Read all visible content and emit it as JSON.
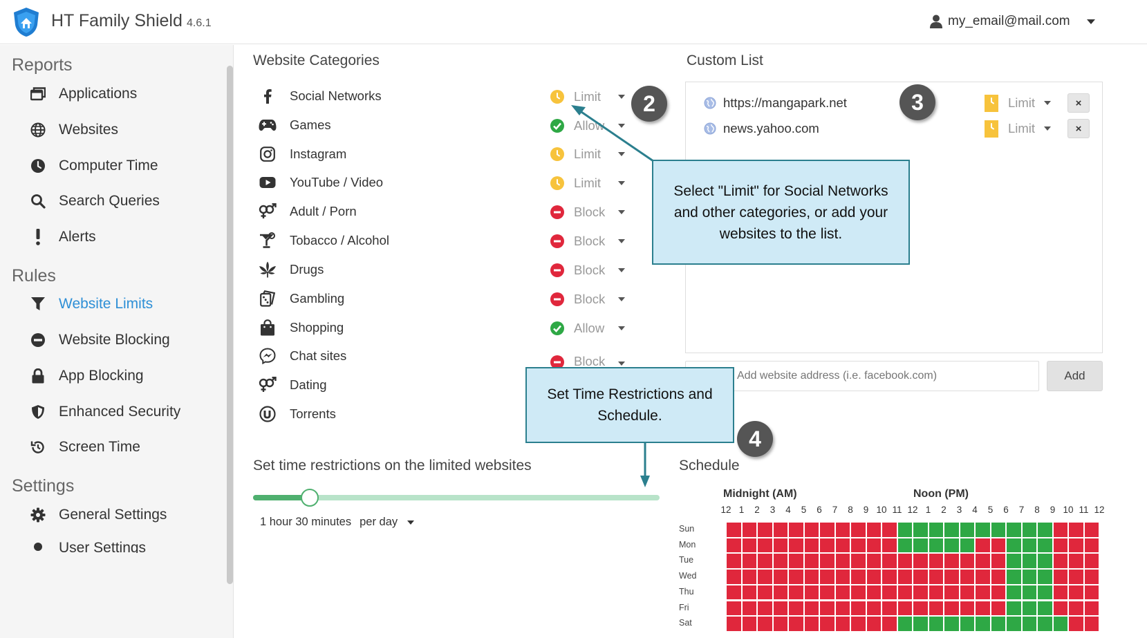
{
  "header": {
    "app_title": "HT Family Shield",
    "version": "4.6.1",
    "user_email": "my_email@mail.com"
  },
  "sidebar": {
    "reports_title": "Reports",
    "reports_items": [
      {
        "label": "Applications",
        "icon": "window-icon"
      },
      {
        "label": "Websites",
        "icon": "globe-icon"
      },
      {
        "label": "Computer Time",
        "icon": "clock-icon"
      },
      {
        "label": "Search Queries",
        "icon": "search-icon"
      },
      {
        "label": "Alerts",
        "icon": "exclamation-icon"
      }
    ],
    "rules_title": "Rules",
    "rules_items": [
      {
        "label": "Website Limits",
        "icon": "filter-icon",
        "active": true
      },
      {
        "label": "Website Blocking",
        "icon": "minus-circle-icon"
      },
      {
        "label": "App Blocking",
        "icon": "lock-icon"
      },
      {
        "label": "Enhanced Security",
        "icon": "shield-icon"
      },
      {
        "label": "Screen Time",
        "icon": "history-icon"
      }
    ],
    "settings_title": "Settings",
    "settings_items": [
      {
        "label": "General Settings",
        "icon": "gear-icon"
      },
      {
        "label": "User Settings",
        "icon": "user-icon"
      }
    ]
  },
  "categories": {
    "title": "Website Categories",
    "items": [
      {
        "label": "Social Networks",
        "icon": "facebook-icon",
        "status": "Limit"
      },
      {
        "label": "Games",
        "icon": "gamepad-icon",
        "status": "Allow"
      },
      {
        "label": "Instagram",
        "icon": "instagram-icon",
        "status": "Limit"
      },
      {
        "label": "YouTube / Video",
        "icon": "youtube-icon",
        "status": "Limit"
      },
      {
        "label": "Adult / Porn",
        "icon": "gender-icon",
        "status": "Block"
      },
      {
        "label": "Tobacco / Alcohol",
        "icon": "cocktail-icon",
        "status": "Block"
      },
      {
        "label": "Drugs",
        "icon": "leaf-icon",
        "status": "Block"
      },
      {
        "label": "Gambling",
        "icon": "dice-icon",
        "status": "Block"
      },
      {
        "label": "Shopping",
        "icon": "shopping-bag-icon",
        "status": "Allow"
      },
      {
        "label": "Chat sites",
        "icon": "messenger-icon",
        "status": "Block"
      },
      {
        "label": "Dating",
        "icon": "gender-icon",
        "status": ""
      },
      {
        "label": "Torrents",
        "icon": "utorrent-icon",
        "status": ""
      }
    ]
  },
  "custom_list": {
    "title": "Custom List",
    "sites": [
      {
        "url": "https://mangapark.net",
        "status": "Limit"
      },
      {
        "url": "news.yahoo.com",
        "status": "Limit"
      }
    ],
    "remove_label": "×",
    "input_placeholder": "Add website address (i.e. facebook.com)",
    "add_label": "Add"
  },
  "time_restrictions": {
    "title": "Set time restrictions on the limited websites",
    "value": "1 hour 30 minutes",
    "period": "per day",
    "slider_fraction": 0.14
  },
  "schedule": {
    "title": "Schedule",
    "am_label": "Midnight (AM)",
    "pm_label": "Noon (PM)",
    "hour_labels": [
      "12",
      "1",
      "2",
      "3",
      "4",
      "5",
      "6",
      "7",
      "8",
      "9",
      "10",
      "11",
      "12",
      "1",
      "2",
      "3",
      "4",
      "5",
      "6",
      "7",
      "8",
      "9",
      "10",
      "11",
      "12"
    ],
    "days": [
      {
        "label": "Sun",
        "allowed_hours": [
          11,
          12,
          13,
          14,
          15,
          16,
          17,
          18,
          19,
          20
        ]
      },
      {
        "label": "Mon",
        "allowed_hours": [
          11,
          12,
          13,
          14,
          15,
          18,
          19,
          20
        ]
      },
      {
        "label": "Tue",
        "allowed_hours": [
          18,
          19,
          20
        ]
      },
      {
        "label": "Wed",
        "allowed_hours": [
          18,
          19,
          20
        ]
      },
      {
        "label": "Thu",
        "allowed_hours": [
          18,
          19,
          20
        ]
      },
      {
        "label": "Fri",
        "allowed_hours": [
          18,
          19,
          20
        ]
      },
      {
        "label": "Sat",
        "allowed_hours": [
          11,
          12,
          13,
          14,
          15,
          16,
          17,
          18,
          19,
          20,
          21
        ]
      }
    ]
  },
  "callouts": {
    "limit_text": "Select \"Limit\" for Social Networks and other categories, or add your websites to the list.",
    "time_text": "Set Time Restrictions and Schedule.",
    "badge_2": "2",
    "badge_3": "3",
    "badge_4": "4"
  },
  "colors": {
    "accent": "#2e8fd6",
    "limit": "#f7c33c",
    "allow": "#2ea845",
    "block": "#e0273c",
    "slider": "#4fb06f",
    "callout_bg": "#cfeaf6",
    "callout_border": "#2b7f8e"
  }
}
